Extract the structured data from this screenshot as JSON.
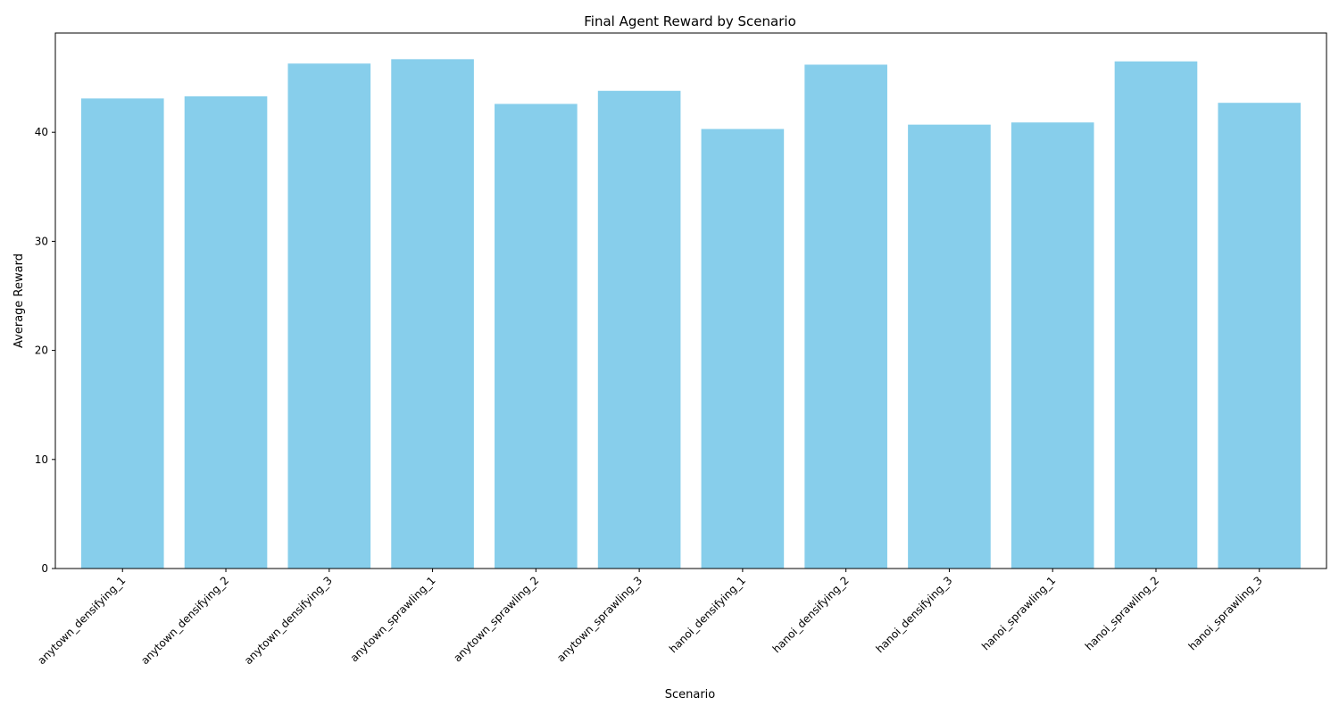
{
  "chart_data": {
    "type": "bar",
    "title": "Final Agent Reward by Scenario",
    "xlabel": "Scenario",
    "ylabel": "Average Reward",
    "categories": [
      "anytown_densifying_1",
      "anytown_densifying_2",
      "anytown_densifying_3",
      "anytown_sprawling_1",
      "anytown_sprawling_2",
      "anytown_sprawling_3",
      "hanoi_densifying_1",
      "hanoi_densifying_2",
      "hanoi_densifying_3",
      "hanoi_sprawling_1",
      "hanoi_sprawling_2",
      "hanoi_sprawling_3"
    ],
    "values": [
      43.1,
      43.3,
      46.3,
      46.7,
      42.6,
      43.8,
      40.3,
      46.2,
      40.7,
      40.9,
      46.5,
      42.7
    ],
    "ylim": [
      0,
      49.1
    ],
    "yticks": [
      0,
      10,
      20,
      30,
      40
    ],
    "grid": false,
    "colors": {
      "bar": "#87ceeb",
      "axis": "#000000"
    }
  }
}
